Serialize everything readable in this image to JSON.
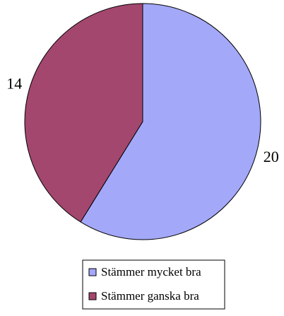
{
  "chart_data": {
    "type": "pie",
    "categories": [
      "Stämmer mycket bra",
      "Stämmer ganska bra"
    ],
    "values": [
      20,
      14
    ],
    "colors": [
      "#a3a8f8",
      "#a3476f"
    ],
    "legend": "bottom"
  }
}
